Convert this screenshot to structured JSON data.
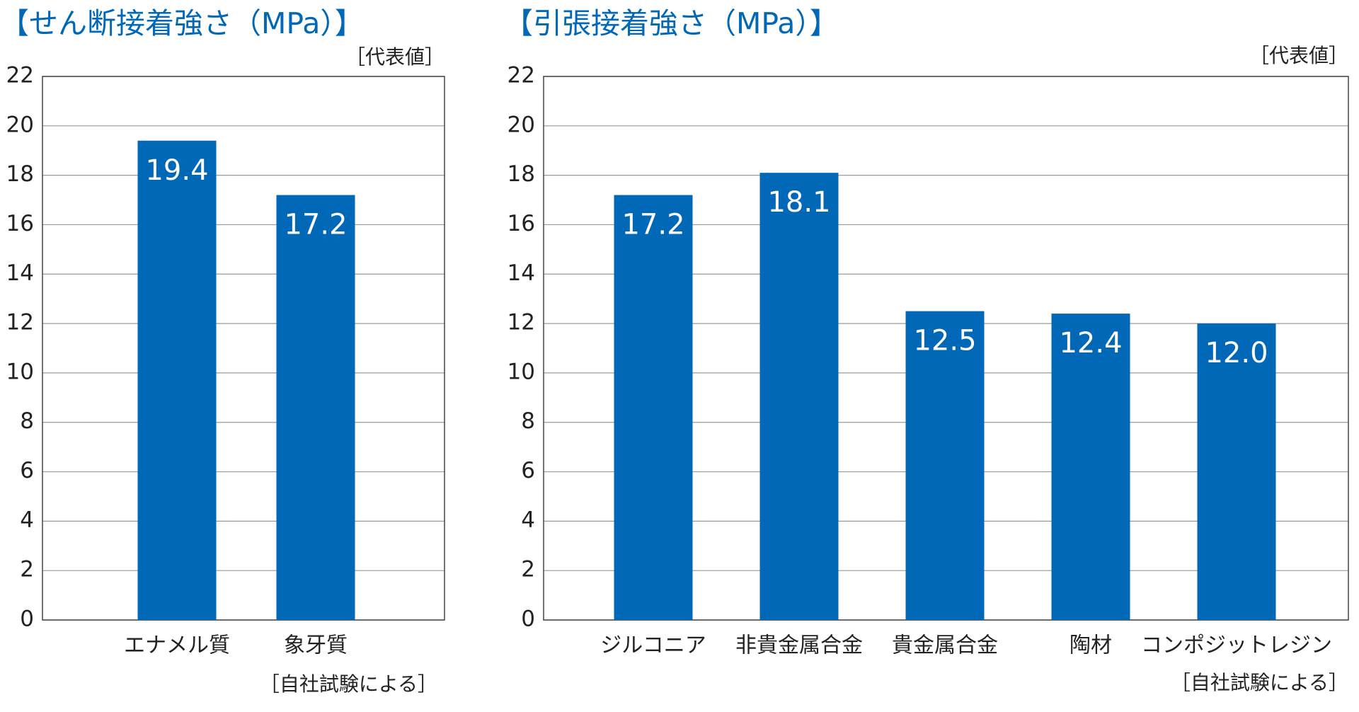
{
  "chart_data": [
    {
      "type": "bar",
      "title": "【せん断接着強さ（MPa）】",
      "note": "［代表値］",
      "source": "［自社試験による］",
      "categories": [
        "エナメル質",
        "象牙質"
      ],
      "values": [
        19.4,
        17.2
      ],
      "value_labels": [
        "19.4",
        "17.2"
      ],
      "color": "#0068b7",
      "ylim": [
        0,
        22
      ],
      "yticks": [
        0,
        2,
        4,
        6,
        8,
        10,
        12,
        14,
        16,
        18,
        20,
        22
      ],
      "grid": true
    },
    {
      "type": "bar",
      "title": "【引張接着強さ（MPa）】",
      "note": "［代表値］",
      "source": "［自社試験による］",
      "categories": [
        "ジルコニア",
        "非貴金属合金",
        "貴金属合金",
        "陶材",
        "コンポジットレジン"
      ],
      "values": [
        17.2,
        18.1,
        12.5,
        12.4,
        12.0
      ],
      "value_labels": [
        "17.2",
        "18.1",
        "12.5",
        "12.4",
        "12.0"
      ],
      "color": "#0068b7",
      "ylim": [
        0,
        22
      ],
      "yticks": [
        0,
        2,
        4,
        6,
        8,
        10,
        12,
        14,
        16,
        18,
        20,
        22
      ],
      "grid": true
    }
  ]
}
